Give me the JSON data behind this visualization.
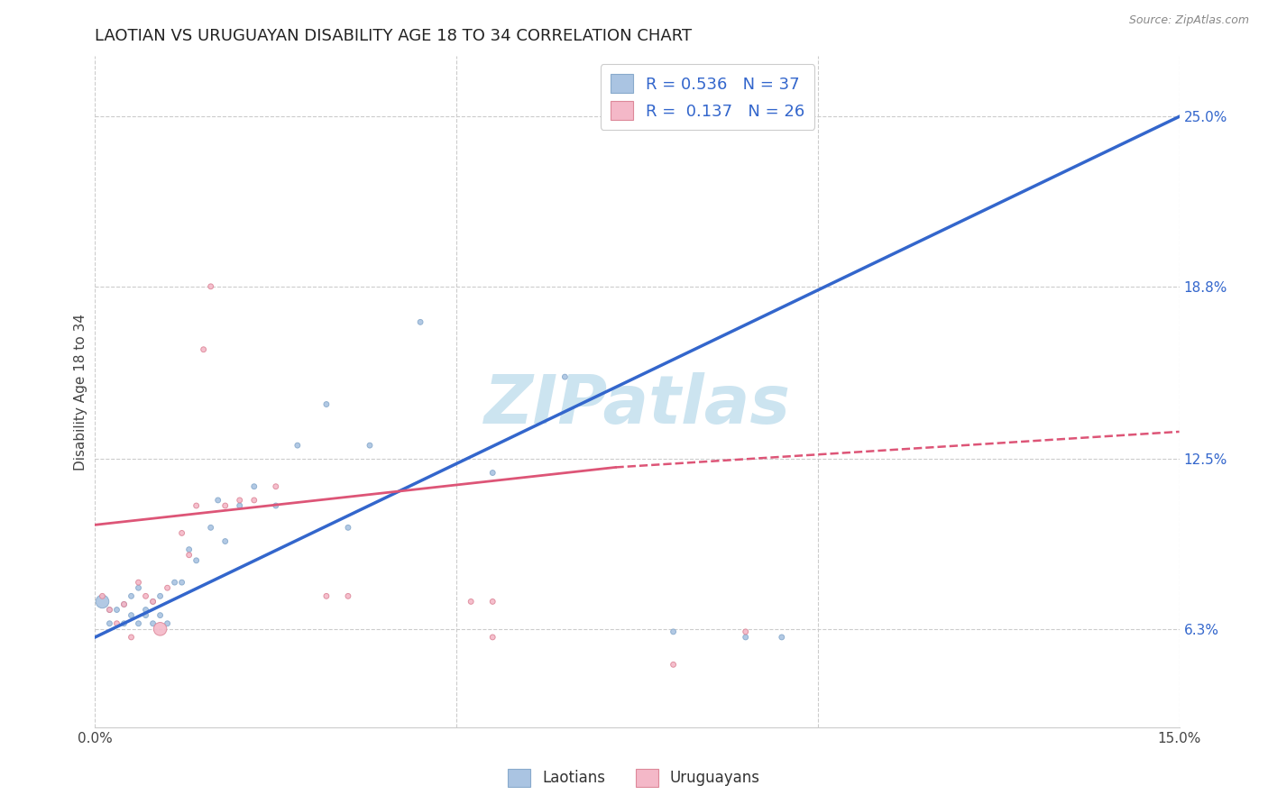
{
  "title": "LAOTIAN VS URUGUAYAN DISABILITY AGE 18 TO 34 CORRELATION CHART",
  "source": "Source: ZipAtlas.com",
  "ylabel": "Disability Age 18 to 34",
  "xlim": [
    0.0,
    0.15
  ],
  "ylim": [
    0.027,
    0.272
  ],
  "ytick_right_labels": [
    "25.0%",
    "18.8%",
    "12.5%",
    "6.3%"
  ],
  "ytick_right_vals": [
    0.25,
    0.188,
    0.125,
    0.063
  ],
  "blue_R": 0.536,
  "blue_N": 37,
  "pink_R": 0.137,
  "pink_N": 26,
  "blue_color": "#aac4e2",
  "blue_edge_color": "#88aacc",
  "pink_color": "#f4b8c8",
  "pink_edge_color": "#dd8899",
  "blue_line_color": "#3366cc",
  "pink_line_color": "#dd5577",
  "watermark_color": "#cce4f0",
  "blue_x": [
    0.001,
    0.002,
    0.002,
    0.003,
    0.004,
    0.004,
    0.005,
    0.005,
    0.006,
    0.006,
    0.007,
    0.007,
    0.008,
    0.008,
    0.009,
    0.009,
    0.01,
    0.011,
    0.012,
    0.013,
    0.014,
    0.016,
    0.017,
    0.018,
    0.02,
    0.022,
    0.025,
    0.028,
    0.032,
    0.035,
    0.038,
    0.045,
    0.055,
    0.065,
    0.08,
    0.09,
    0.095
  ],
  "blue_y": [
    0.073,
    0.07,
    0.065,
    0.07,
    0.065,
    0.072,
    0.068,
    0.075,
    0.065,
    0.078,
    0.07,
    0.068,
    0.065,
    0.073,
    0.068,
    0.075,
    0.065,
    0.08,
    0.08,
    0.092,
    0.088,
    0.1,
    0.11,
    0.095,
    0.108,
    0.115,
    0.108,
    0.13,
    0.145,
    0.1,
    0.13,
    0.175,
    0.12,
    0.155,
    0.062,
    0.06,
    0.06
  ],
  "blue_sizes_raw": [
    500,
    80,
    80,
    80,
    80,
    80,
    80,
    80,
    80,
    80,
    80,
    80,
    80,
    80,
    80,
    80,
    80,
    80,
    80,
    80,
    80,
    80,
    80,
    80,
    80,
    80,
    80,
    80,
    80,
    80,
    80,
    80,
    80,
    80,
    80,
    80,
    80
  ],
  "pink_x": [
    0.001,
    0.002,
    0.003,
    0.004,
    0.005,
    0.006,
    0.007,
    0.008,
    0.009,
    0.01,
    0.012,
    0.013,
    0.014,
    0.015,
    0.016,
    0.018,
    0.02,
    0.022,
    0.025,
    0.032,
    0.035,
    0.052,
    0.055,
    0.055,
    0.08,
    0.09
  ],
  "pink_y": [
    0.075,
    0.07,
    0.065,
    0.072,
    0.06,
    0.08,
    0.075,
    0.073,
    0.063,
    0.078,
    0.098,
    0.09,
    0.108,
    0.165,
    0.188,
    0.108,
    0.11,
    0.11,
    0.115,
    0.075,
    0.075,
    0.073,
    0.073,
    0.06,
    0.05,
    0.062
  ],
  "pink_sizes_raw": [
    80,
    80,
    80,
    80,
    80,
    80,
    80,
    80,
    500,
    80,
    80,
    80,
    80,
    80,
    80,
    80,
    80,
    80,
    80,
    80,
    80,
    80,
    80,
    80,
    80,
    80
  ],
  "blue_line_x0": 0.0,
  "blue_line_y0": 0.06,
  "blue_line_x1": 0.15,
  "blue_line_y1": 0.25,
  "pink_line_x0": 0.0,
  "pink_line_y0": 0.101,
  "pink_line_solid_x1": 0.072,
  "pink_line_solid_y1": 0.122,
  "pink_line_dashed_x1": 0.15,
  "pink_line_dashed_y1": 0.135,
  "grid_color": "#cccccc",
  "background_color": "#ffffff",
  "title_fontsize": 13,
  "axis_label_fontsize": 11
}
